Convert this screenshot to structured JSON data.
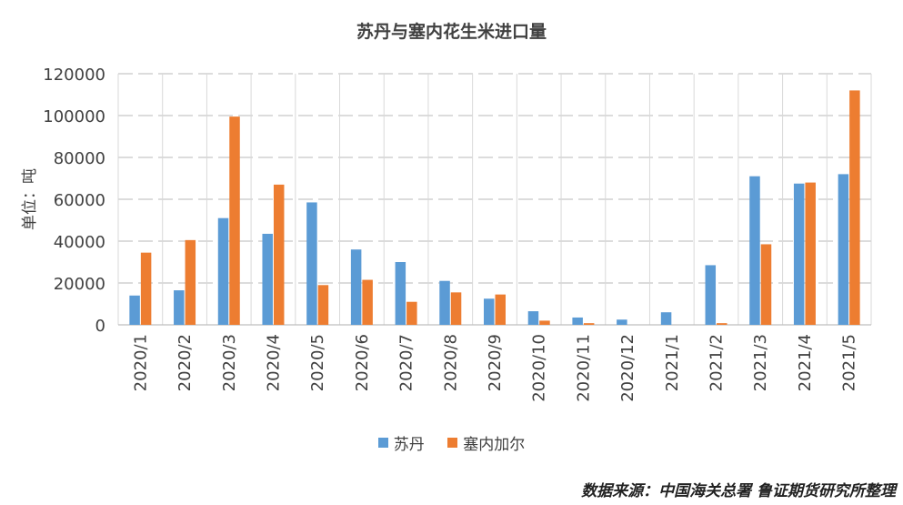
{
  "chart_data": {
    "type": "bar",
    "title": "苏丹与塞内花生米进口量",
    "ylabel": "单位：吨",
    "xlabel": "",
    "ylim": [
      0,
      120000
    ],
    "yticks": [
      0,
      20000,
      40000,
      60000,
      80000,
      100000,
      120000
    ],
    "grid": true,
    "legend": "bottom",
    "categories": [
      "2020/1",
      "2020/2",
      "2020/3",
      "2020/4",
      "2020/5",
      "2020/6",
      "2020/7",
      "2020/8",
      "2020/9",
      "2020/10",
      "2020/11",
      "2020/12",
      "2021/1",
      "2021/2",
      "2021/3",
      "2021/4",
      "2021/5"
    ],
    "series": [
      {
        "name": "苏丹",
        "color": "#5B9BD5",
        "values": [
          14000,
          16500,
          51000,
          43500,
          58500,
          36000,
          30000,
          21000,
          12500,
          6500,
          3500,
          2500,
          6000,
          28500,
          71000,
          67500,
          72000
        ]
      },
      {
        "name": "塞内加尔",
        "color": "#ED7D31",
        "values": [
          34500,
          40500,
          99500,
          67000,
          19000,
          21500,
          11000,
          15500,
          14500,
          2000,
          800,
          0,
          0,
          800,
          38500,
          68000,
          112000
        ]
      }
    ]
  },
  "source_text": "数据来源：中国海关总署 鲁证期货研究所整理"
}
